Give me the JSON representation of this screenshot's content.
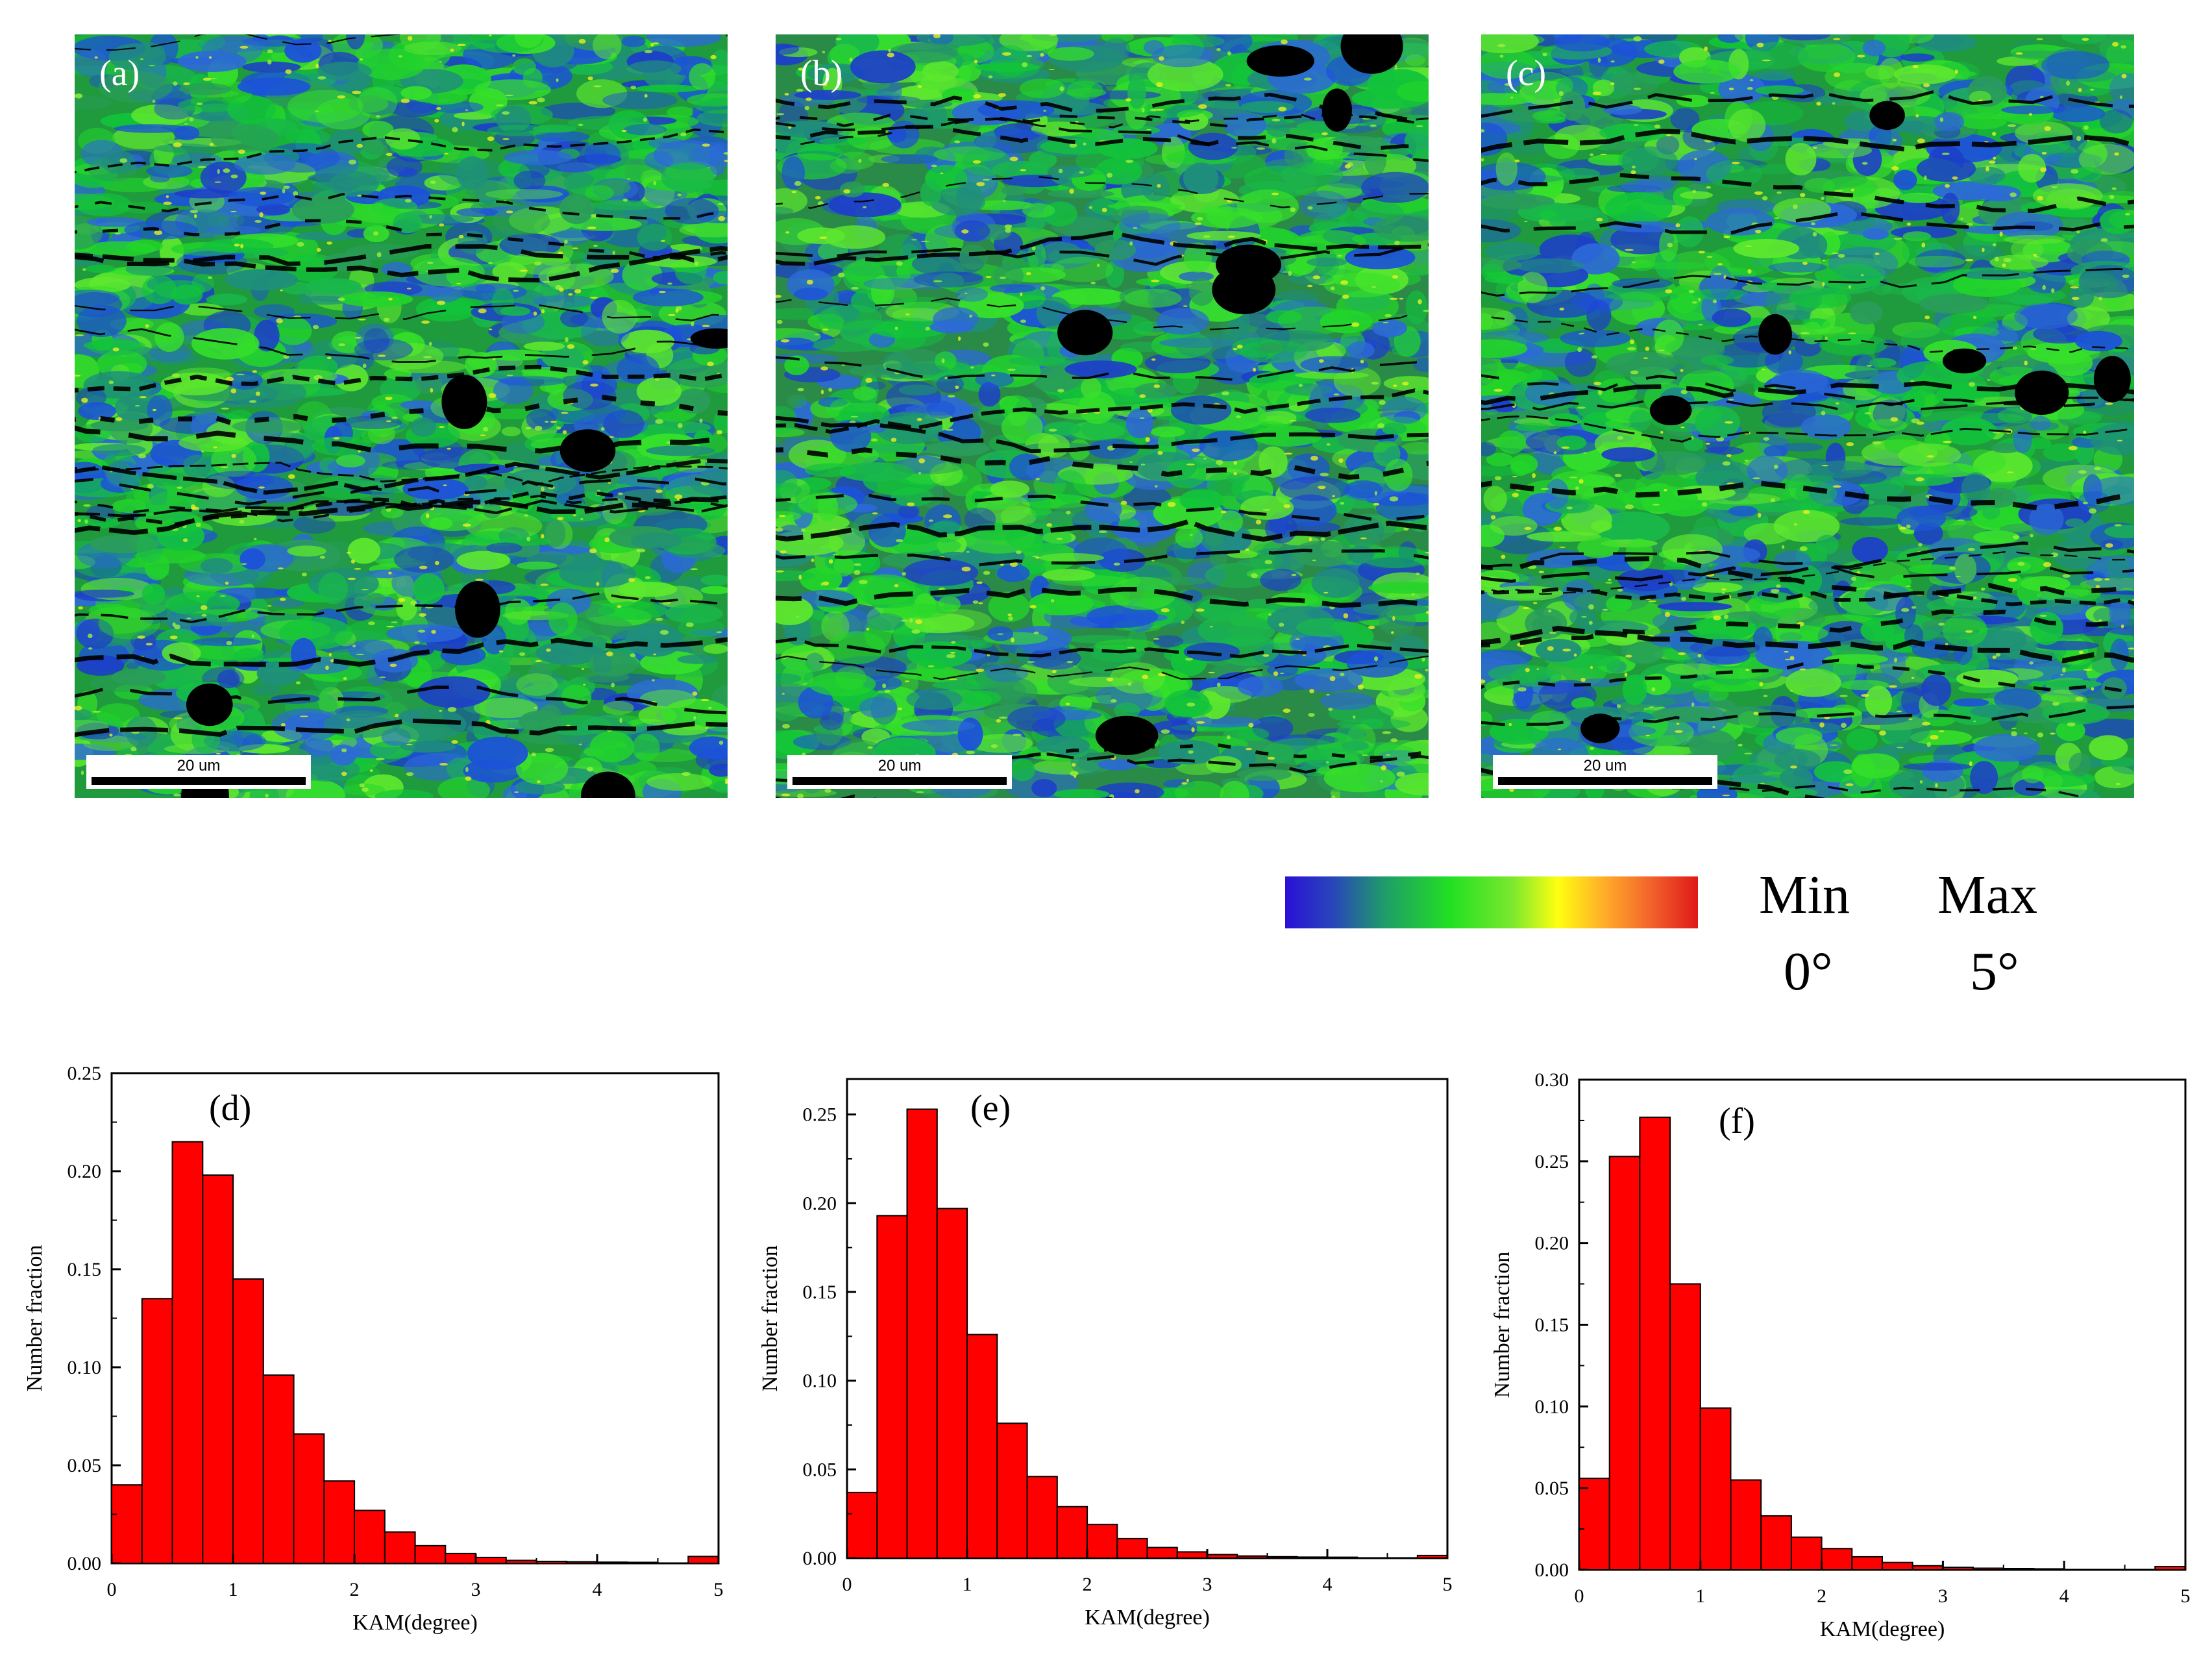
{
  "maps": [
    {
      "label": "(a)",
      "scalebar": "20 um"
    },
    {
      "label": "(b)",
      "scalebar": "20 um"
    },
    {
      "label": "(c)",
      "scalebar": "20 um"
    }
  ],
  "colorbar": {
    "min_label": "Min",
    "max_label": "Max",
    "min_value": "0°",
    "max_value": "5°",
    "colors": [
      "#2a10d8",
      "#22e022",
      "#ffff10",
      "#e01818"
    ]
  },
  "chart_data": [
    {
      "type": "bar",
      "panel_label": "(d)",
      "xlabel": "KAM(degree)",
      "ylabel": "Number fraction",
      "xlim": [
        0,
        5
      ],
      "ylim": [
        0,
        0.25
      ],
      "xticks": [
        "0",
        "1",
        "2",
        "3",
        "4",
        "5"
      ],
      "yticks": [
        "0.00",
        "0.05",
        "0.10",
        "0.15",
        "0.20",
        "0.25"
      ],
      "bar_width": 0.25,
      "x": [
        0.125,
        0.375,
        0.625,
        0.875,
        1.125,
        1.375,
        1.625,
        1.875,
        2.125,
        2.375,
        2.625,
        2.875,
        3.125,
        3.375,
        3.625,
        3.875,
        4.125,
        4.375,
        4.875
      ],
      "values": [
        0.04,
        0.135,
        0.215,
        0.198,
        0.145,
        0.096,
        0.066,
        0.042,
        0.027,
        0.016,
        0.009,
        0.005,
        0.003,
        0.0015,
        0.001,
        0.0008,
        0.0006,
        0.0005,
        0.0035
      ],
      "color": "#ff0000"
    },
    {
      "type": "bar",
      "panel_label": "(e)",
      "xlabel": "KAM(degree)",
      "ylabel": "Number fraction",
      "xlim": [
        0,
        5
      ],
      "ylim": [
        0,
        0.27
      ],
      "xticks": [
        "0",
        "1",
        "2",
        "3",
        "4",
        "5"
      ],
      "yticks": [
        "0.00",
        "0.05",
        "0.10",
        "0.15",
        "0.20",
        "0.25"
      ],
      "bar_width": 0.25,
      "x": [
        0.125,
        0.375,
        0.625,
        0.875,
        1.125,
        1.375,
        1.625,
        1.875,
        2.125,
        2.375,
        2.625,
        2.875,
        3.125,
        3.375,
        3.625,
        3.875,
        4.125,
        4.875
      ],
      "values": [
        0.037,
        0.193,
        0.253,
        0.197,
        0.126,
        0.076,
        0.046,
        0.029,
        0.019,
        0.011,
        0.006,
        0.0035,
        0.002,
        0.0012,
        0.0008,
        0.0006,
        0.0005,
        0.0015
      ],
      "color": "#ff0000"
    },
    {
      "type": "bar",
      "panel_label": "(f)",
      "xlabel": "KAM(degree)",
      "ylabel": "Number fraction",
      "xlim": [
        0,
        5
      ],
      "ylim": [
        0,
        0.3
      ],
      "xticks": [
        "0",
        "1",
        "2",
        "3",
        "4",
        "5"
      ],
      "yticks": [
        "0.00",
        "0.05",
        "0.10",
        "0.15",
        "0.20",
        "0.25",
        "0.30"
      ],
      "bar_width": 0.25,
      "x": [
        0.125,
        0.375,
        0.625,
        0.875,
        1.125,
        1.375,
        1.625,
        1.875,
        2.125,
        2.375,
        2.625,
        2.875,
        3.125,
        3.375,
        3.625,
        3.875,
        4.875
      ],
      "values": [
        0.056,
        0.253,
        0.277,
        0.175,
        0.099,
        0.055,
        0.033,
        0.02,
        0.013,
        0.008,
        0.0045,
        0.0025,
        0.0015,
        0.001,
        0.0008,
        0.0006,
        0.002
      ],
      "color": "#ff0000"
    }
  ]
}
